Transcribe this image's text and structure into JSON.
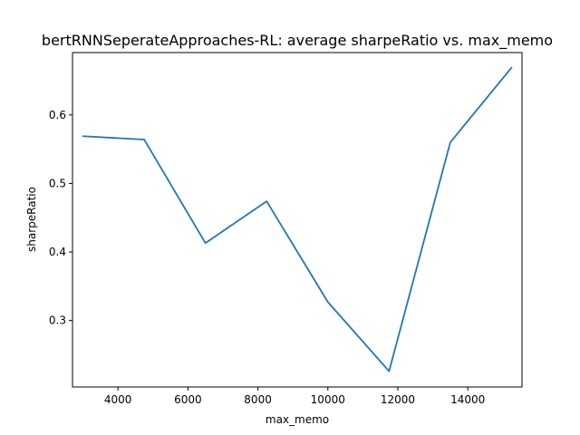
{
  "chart_data": {
    "type": "line",
    "title": "bertRNNSeperateApproaches-RL: average sharpeRatio vs. max_memo",
    "xlabel": "max_memo",
    "ylabel": "sharpeRatio",
    "xlim": [
      2700,
      15550
    ],
    "ylim": [
      0.203,
      0.691
    ],
    "xticks": [
      4000,
      6000,
      8000,
      10000,
      12000,
      14000
    ],
    "xtick_labels": [
      "4000",
      "6000",
      "8000",
      "10000",
      "12000",
      "14000"
    ],
    "yticks": [
      0.3,
      0.4,
      0.5,
      0.6
    ],
    "ytick_labels": [
      "0.3",
      "0.4",
      "0.5",
      "0.6"
    ],
    "grid": false,
    "series": [
      {
        "color": "#1f77b4",
        "x": [
          3000,
          4750,
          6500,
          8250,
          10000,
          11750,
          13500,
          15250
        ],
        "y": [
          0.569,
          0.564,
          0.413,
          0.474,
          0.327,
          0.226,
          0.56,
          0.669
        ]
      }
    ]
  }
}
